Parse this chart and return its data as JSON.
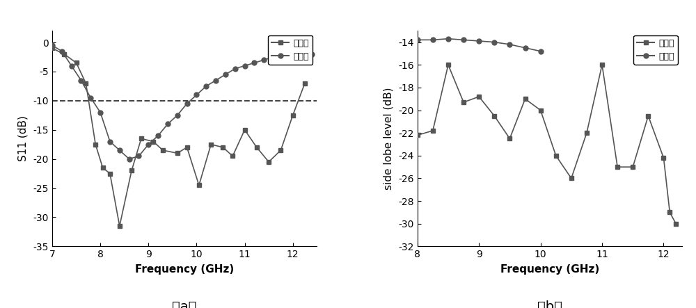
{
  "plot_a": {
    "title": "（a）",
    "xlabel": "Frequency (GHz)",
    "ylabel": "S11 (dB)",
    "xlim": [
      7,
      12.5
    ],
    "ylim": [
      -35,
      2
    ],
    "yticks": [
      0,
      -5,
      -10,
      -15,
      -20,
      -25,
      -30,
      -35
    ],
    "xticks": [
      7,
      8,
      9,
      10,
      11,
      12
    ],
    "dashed_line_y": -10,
    "four_port_x": [
      7.0,
      7.25,
      7.5,
      7.7,
      7.9,
      8.05,
      8.2,
      8.4,
      8.65,
      8.85,
      9.1,
      9.3,
      9.6,
      9.8,
      10.05,
      10.3,
      10.55,
      10.75,
      11.0,
      11.25,
      11.5,
      11.75,
      12.0,
      12.25
    ],
    "four_port_y": [
      -1.0,
      -2.0,
      -3.5,
      -7.0,
      -17.5,
      -21.5,
      -22.5,
      -31.5,
      -22.0,
      -16.5,
      -17.0,
      -18.5,
      -19.0,
      -18.0,
      -24.5,
      -17.5,
      -18.0,
      -19.5,
      -15.0,
      -18.0,
      -20.5,
      -18.5,
      -12.5,
      -7.0
    ],
    "dual_port_x": [
      7.0,
      7.2,
      7.4,
      7.6,
      7.8,
      8.0,
      8.2,
      8.4,
      8.6,
      8.8,
      9.0,
      9.2,
      9.4,
      9.6,
      9.8,
      10.0,
      10.2,
      10.4,
      10.6,
      10.8,
      11.0,
      11.2,
      11.4,
      11.6,
      11.8,
      12.0,
      12.2,
      12.4
    ],
    "dual_port_y": [
      -0.5,
      -1.5,
      -4.0,
      -6.5,
      -9.5,
      -12.0,
      -17.0,
      -18.5,
      -20.0,
      -19.5,
      -17.5,
      -16.0,
      -14.0,
      -12.5,
      -10.5,
      -9.0,
      -7.5,
      -6.5,
      -5.5,
      -4.5,
      -4.0,
      -3.5,
      -3.0,
      -2.5,
      -2.5,
      -2.0,
      -2.0,
      -2.0
    ]
  },
  "plot_b": {
    "title": "（b）",
    "xlabel": "Frequency (GHz)",
    "ylabel": "side lobe level (dB)",
    "xlim": [
      8,
      12.3
    ],
    "ylim": [
      -32,
      -13
    ],
    "yticks": [
      -14,
      -16,
      -18,
      -20,
      -22,
      -24,
      -26,
      -28,
      -30,
      -32
    ],
    "xticks": [
      8,
      9,
      10,
      11,
      12
    ],
    "four_port_x": [
      8.0,
      8.25,
      8.5,
      8.75,
      9.0,
      9.25,
      9.5,
      9.75,
      10.0,
      10.25,
      10.5,
      10.75,
      11.0,
      11.25,
      11.5,
      11.75,
      12.0,
      12.1,
      12.2
    ],
    "four_port_y": [
      -22.2,
      -21.8,
      -16.0,
      -19.3,
      -18.8,
      -20.5,
      -22.5,
      -19.0,
      -20.0,
      -24.0,
      -26.0,
      -22.0,
      -16.0,
      -25.0,
      -25.0,
      -20.5,
      -24.2,
      -29.0,
      -30.0
    ],
    "dual_port_x": [
      8.0,
      8.25,
      8.5,
      8.75,
      9.0,
      9.25,
      9.5,
      9.75,
      10.0
    ],
    "dual_port_y": [
      -13.8,
      -13.8,
      -13.7,
      -13.8,
      -13.9,
      -14.0,
      -14.2,
      -14.5,
      -14.8
    ]
  },
  "line_color": "#555555",
  "marker_square": "s",
  "marker_circle": "o",
  "marker_size": 5,
  "legend_label_four": "四口径",
  "legend_label_dual": "双口径"
}
